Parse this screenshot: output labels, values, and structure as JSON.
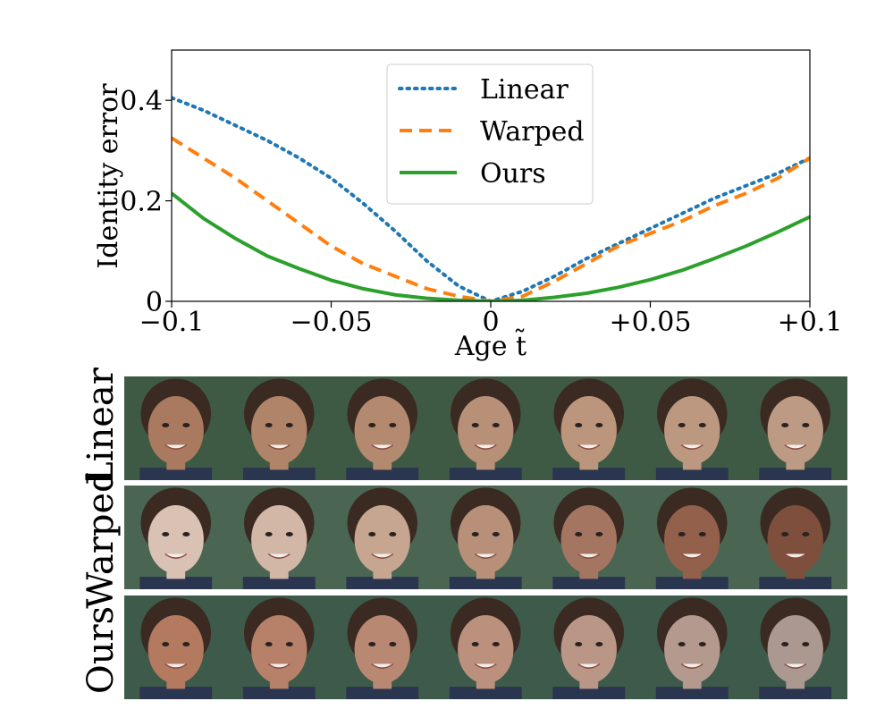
{
  "chart_data": {
    "type": "line",
    "xlabel": "Age t̃",
    "ylabel": "Identity error",
    "xlim": [
      -0.1,
      0.1
    ],
    "ylim": [
      0,
      0.5
    ],
    "xticks": [
      -0.1,
      -0.05,
      0,
      0.05,
      0.1
    ],
    "xtick_labels": [
      "−0.1",
      "−0.05",
      "0",
      "+0.05",
      "+0.1"
    ],
    "yticks": [
      0,
      0.2,
      0.4
    ],
    "ytick_labels": [
      "0",
      "0.2",
      "0.4"
    ],
    "grid": false,
    "legend_position": "top-center",
    "series": [
      {
        "name": "Linear",
        "style": "dotted",
        "color": "#1f77b4",
        "x": [
          -0.1,
          -0.09,
          -0.08,
          -0.07,
          -0.06,
          -0.05,
          -0.04,
          -0.03,
          -0.02,
          -0.01,
          0,
          0.01,
          0.02,
          0.03,
          0.04,
          0.05,
          0.06,
          0.07,
          0.08,
          0.09,
          0.1
        ],
        "y": [
          0.405,
          0.38,
          0.35,
          0.32,
          0.285,
          0.245,
          0.195,
          0.14,
          0.08,
          0.03,
          0.0,
          0.02,
          0.05,
          0.085,
          0.115,
          0.145,
          0.175,
          0.205,
          0.23,
          0.255,
          0.285
        ]
      },
      {
        "name": "Warped",
        "style": "dashed",
        "color": "#ff7f0e",
        "x": [
          -0.1,
          -0.09,
          -0.08,
          -0.07,
          -0.06,
          -0.05,
          -0.04,
          -0.03,
          -0.02,
          -0.01,
          0,
          0.01,
          0.02,
          0.03,
          0.04,
          0.05,
          0.06,
          0.07,
          0.08,
          0.09,
          0.1
        ],
        "y": [
          0.325,
          0.285,
          0.245,
          0.2,
          0.155,
          0.11,
          0.075,
          0.05,
          0.025,
          0.01,
          0.0,
          0.01,
          0.04,
          0.075,
          0.11,
          0.135,
          0.16,
          0.19,
          0.215,
          0.245,
          0.285
        ]
      },
      {
        "name": "Ours",
        "style": "solid",
        "color": "#2ca02c",
        "x": [
          -0.1,
          -0.09,
          -0.08,
          -0.07,
          -0.06,
          -0.05,
          -0.04,
          -0.03,
          -0.02,
          -0.01,
          0,
          0.01,
          0.02,
          0.03,
          0.04,
          0.05,
          0.06,
          0.07,
          0.08,
          0.09,
          0.1
        ],
        "y": [
          0.215,
          0.165,
          0.125,
          0.09,
          0.065,
          0.042,
          0.025,
          0.013,
          0.006,
          0.002,
          0.0,
          0.002,
          0.008,
          0.016,
          0.028,
          0.043,
          0.062,
          0.085,
          0.11,
          0.138,
          0.168
        ]
      }
    ]
  },
  "image_grid": {
    "rows": [
      {
        "label": "Linear",
        "panel_count": 7,
        "skin_colors": [
          "#a97a60",
          "#b08468",
          "#b38a70",
          "#b89077",
          "#bb957c",
          "#bd9880",
          "#bd9a83"
        ],
        "bg_color": "#3f5a44"
      },
      {
        "label": "Warped",
        "panel_count": 7,
        "skin_colors": [
          "#d9c1b3",
          "#d2b7a6",
          "#c6a691",
          "#b88f78",
          "#a47560",
          "#92604b",
          "#7e4f3c"
        ],
        "bg_color": "#4a6653"
      },
      {
        "label": "Ours",
        "panel_count": 7,
        "skin_colors": [
          "#b37a60",
          "#b78068",
          "#b98873",
          "#bb917e",
          "#b99686",
          "#b49a8e",
          "#aa9891"
        ],
        "bg_color": "#3e5a4a"
      }
    ],
    "hair_color": "#3a2a22",
    "shirt_color": "#2a3550"
  }
}
